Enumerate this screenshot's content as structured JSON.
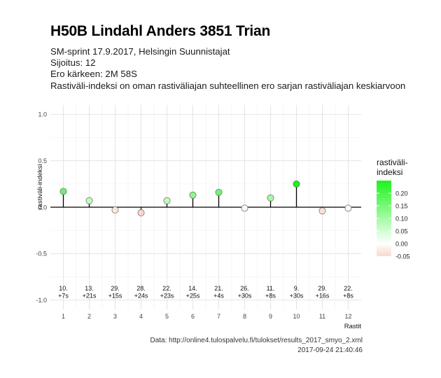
{
  "title": "H50B Lindahl Anders 3851 Trian",
  "subtitle_lines": [
    "SM-sprint 17.9.2017, Helsingin Suunnistajat",
    "Sijoitus: 12",
    "Ero kärkeen: 2M 58S",
    "Rastiväli-indeksi on oman rastiväliajan suhteellinen ero sarjan rastiväliajan keskiarvoon"
  ],
  "caption_lines": [
    "Data: http://online4.tulospalvelu.fi/tulokset/results_2017_smyo_2.xml",
    "2017-09-24 21:40:46"
  ],
  "chart_data": {
    "type": "scatter",
    "style": "lollipop",
    "xlabel": "Rastit",
    "ylabel": "rastiväli-indeksi",
    "x": [
      1,
      2,
      3,
      4,
      5,
      6,
      7,
      8,
      9,
      10,
      11,
      12
    ],
    "values": [
      0.17,
      0.07,
      -0.03,
      -0.06,
      0.07,
      0.13,
      0.16,
      -0.01,
      0.1,
      0.25,
      -0.04,
      -0.01
    ],
    "point_labels": [
      [
        "10.",
        "+7s"
      ],
      [
        "13.",
        "+21s"
      ],
      [
        "29.",
        "+15s"
      ],
      [
        "28.",
        "+24s"
      ],
      [
        "22.",
        "+23s"
      ],
      [
        "14.",
        "+25s"
      ],
      [
        "21.",
        "+4s"
      ],
      [
        "26.",
        "+30s"
      ],
      [
        "11.",
        "+8s"
      ],
      [
        "9.",
        "+30s"
      ],
      [
        "29.",
        "+16s"
      ],
      [
        "22.",
        "+8s"
      ]
    ],
    "xlim": [
      0.5,
      12.5
    ],
    "ylim": [
      -1.1,
      1.1
    ],
    "x_ticks": [
      "1",
      "2",
      "3",
      "4",
      "5",
      "6",
      "7",
      "8",
      "9",
      "10",
      "11",
      "12"
    ],
    "y_ticks": [
      {
        "value": 1.0,
        "label": "1.0"
      },
      {
        "value": 0.5,
        "label": "0.5"
      },
      {
        "value": 0.0,
        "label": "0.0"
      },
      {
        "value": -0.5,
        "label": "-0.5"
      },
      {
        "value": -1.0,
        "label": "-1.0"
      }
    ],
    "grid": true,
    "legend": {
      "title": [
        "rastiväli-",
        "indeksi"
      ],
      "position": "right",
      "colors": {
        "low": "#f7d8cc",
        "mid": "#ffffff",
        "high": "#1ef31e"
      },
      "range": [
        -0.05,
        0.25
      ],
      "ticks": [
        {
          "value": 0.2,
          "label": "0.20"
        },
        {
          "value": 0.15,
          "label": "0.15"
        },
        {
          "value": 0.1,
          "label": "0.10"
        },
        {
          "value": 0.05,
          "label": "0.05"
        },
        {
          "value": 0.0,
          "label": "0.00"
        },
        {
          "value": -0.05,
          "label": "-0.05"
        }
      ]
    }
  }
}
